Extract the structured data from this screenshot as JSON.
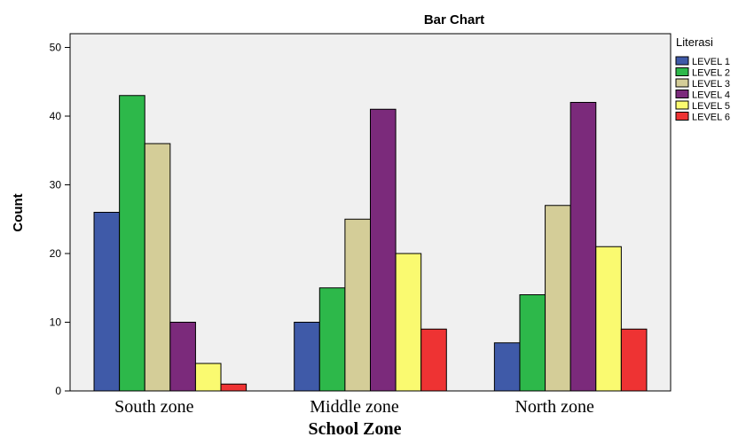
{
  "chart_data": {
    "type": "bar",
    "title": "Bar Chart",
    "xlabel": "School  Zone",
    "ylabel": "Count",
    "categories": [
      "South zone",
      "Middle zone",
      "North zone"
    ],
    "ylim": [
      0,
      52
    ],
    "yticks": [
      0,
      10,
      20,
      30,
      40,
      50
    ],
    "legend_title": "Literasi",
    "legend_position": "right",
    "plot_background": "#f0f0f0",
    "series": [
      {
        "name": "LEVEL 1",
        "color": "#3f5aa8",
        "values": [
          26,
          10,
          7
        ]
      },
      {
        "name": "LEVEL 2",
        "color": "#2db84a",
        "values": [
          43,
          15,
          14
        ]
      },
      {
        "name": "LEVEL 3",
        "color": "#d4cd98",
        "values": [
          36,
          25,
          27
        ]
      },
      {
        "name": "LEVEL 4",
        "color": "#7b2a7b",
        "values": [
          10,
          41,
          42
        ]
      },
      {
        "name": "LEVEL 5",
        "color": "#fafa70",
        "values": [
          4,
          20,
          21
        ]
      },
      {
        "name": "LEVEL 6",
        "color": "#ee3333",
        "values": [
          1,
          9,
          9
        ]
      }
    ]
  }
}
